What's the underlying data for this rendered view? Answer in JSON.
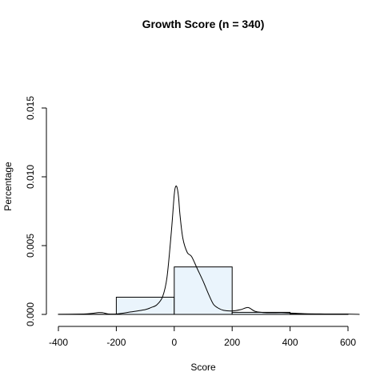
{
  "chart_data": {
    "type": "bar",
    "title": "Growth Score (n = 340)",
    "xlabel": "Score",
    "ylabel": "Percentage",
    "xlim": [
      -400,
      600
    ],
    "ylim": [
      0,
      0.015
    ],
    "x_ticks": [
      -400,
      -200,
      0,
      200,
      400,
      600
    ],
    "x_tick_labels": [
      "-400",
      "-200",
      "0",
      "200",
      "400",
      "600"
    ],
    "y_ticks": [
      0,
      0.005,
      0.01,
      0.015
    ],
    "y_tick_labels": [
      "0.000",
      "0.005",
      "0.010",
      "0.015"
    ],
    "bar_fill": "#EAF4FC",
    "bins": [
      {
        "x0": -400,
        "x1": -200,
        "value": 1e-05
      },
      {
        "x0": -200,
        "x1": 0,
        "value": 0.00125
      },
      {
        "x0": 0,
        "x1": 200,
        "value": 0.00345
      },
      {
        "x0": 200,
        "x1": 400,
        "value": 0.00015
      },
      {
        "x0": 400,
        "x1": 600,
        "value": 3e-05
      }
    ],
    "density": {
      "x": [
        -400,
        -330,
        -300,
        -280,
        -260,
        -245,
        -230,
        -200,
        -150,
        -100,
        -80,
        -60,
        -40,
        -25,
        -10,
        0,
        5,
        10,
        15,
        20,
        30,
        45,
        60,
        80,
        100,
        120,
        135,
        150,
        170,
        200,
        230,
        255,
        280,
        320,
        380,
        450,
        520,
        600,
        640
      ],
      "y": [
        0.0,
        2e-05,
        4e-05,
        8e-05,
        0.00014,
        0.00012,
        4e-05,
        3e-05,
        0.00018,
        0.00035,
        0.0005,
        0.0007,
        0.0013,
        0.0027,
        0.006,
        0.0087,
        0.0093,
        0.0092,
        0.0085,
        0.0072,
        0.0055,
        0.0045,
        0.0042,
        0.0033,
        0.0024,
        0.0014,
        0.00075,
        0.00048,
        0.0003,
        0.00025,
        0.00035,
        0.0005,
        0.00022,
        0.00012,
        0.00012,
        5e-05,
        3e-05,
        2e-05,
        0.0
      ]
    }
  }
}
